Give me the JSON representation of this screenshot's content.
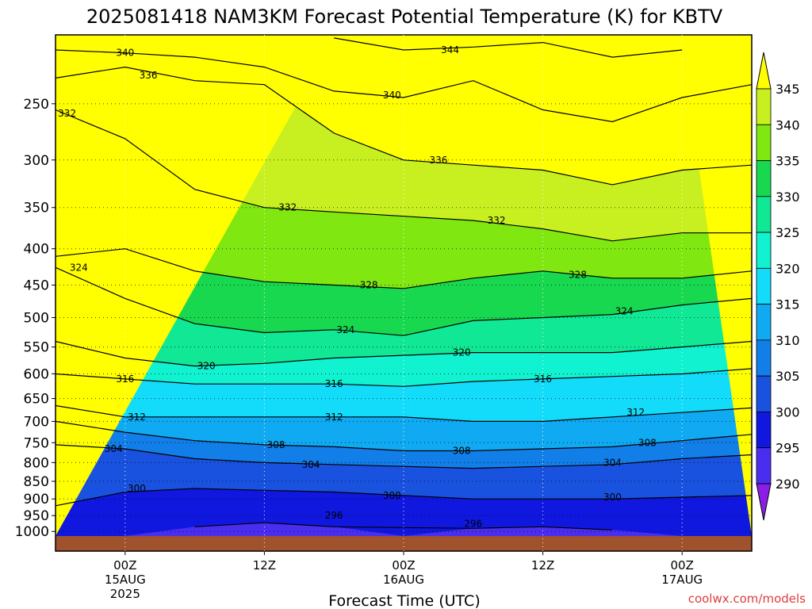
{
  "chart_data": {
    "type": "contour",
    "title": "2025081418 NAM3KM Forecast Potential Temperature (K) for KBTV",
    "xlabel": "Forecast Time (UTC)",
    "ylabel": "",
    "credit": "coolwx.com/models",
    "x_ticks": [
      {
        "hour": 6,
        "lines": [
          "00Z",
          "15AUG",
          "2025"
        ]
      },
      {
        "hour": 18,
        "lines": [
          "12Z"
        ]
      },
      {
        "hour": 30,
        "lines": [
          "00Z",
          "16AUG"
        ]
      },
      {
        "hour": 42,
        "lines": [
          "12Z"
        ]
      },
      {
        "hour": 54,
        "lines": [
          "00Z",
          "17AUG"
        ]
      }
    ],
    "x_range_hours": [
      0,
      60
    ],
    "y_ticks": [
      250,
      300,
      350,
      400,
      450,
      500,
      550,
      600,
      650,
      700,
      750,
      800,
      850,
      900,
      950,
      1000
    ],
    "y_range_hpa": [
      200,
      1015
    ],
    "y_scale": "log-pressure",
    "grid": "dotted",
    "colorbar": {
      "levels": [
        290,
        295,
        300,
        305,
        310,
        315,
        320,
        325,
        330,
        335,
        340,
        345
      ],
      "colors": [
        "#8a1ee6",
        "#4a2ef0",
        "#1018e0",
        "#1a52e0",
        "#127ee8",
        "#10aaf2",
        "#12dcfa",
        "#10f2d0",
        "#10e896",
        "#18d850",
        "#80e810",
        "#c8f020",
        "#ffff00"
      ]
    },
    "isotherms": [
      {
        "value": 296,
        "label_hour": 18,
        "pressure": [
          [
            0,
            0
          ],
          [
            6,
            0
          ],
          [
            12,
            985
          ],
          [
            18,
            972
          ],
          [
            24,
            985
          ],
          [
            30,
            0
          ],
          [
            36,
            990
          ],
          [
            42,
            985
          ],
          [
            48,
            995
          ],
          [
            54,
            0
          ],
          [
            60,
            0
          ]
        ],
        "label_at": [
          [
            24,
            950
          ],
          [
            36,
            975
          ]
        ]
      },
      {
        "value": 300,
        "pressure": [
          [
            0,
            920
          ],
          [
            6,
            880
          ],
          [
            12,
            870
          ],
          [
            18,
            875
          ],
          [
            24,
            880
          ],
          [
            30,
            890
          ],
          [
            36,
            900
          ],
          [
            42,
            900
          ],
          [
            48,
            900
          ],
          [
            54,
            895
          ],
          [
            60,
            890
          ]
        ],
        "label_at": [
          [
            7,
            870
          ],
          [
            29,
            890
          ],
          [
            48,
            895
          ]
        ]
      },
      {
        "value": 304,
        "pressure": [
          [
            0,
            755
          ],
          [
            6,
            765
          ],
          [
            12,
            790
          ],
          [
            18,
            800
          ],
          [
            24,
            805
          ],
          [
            30,
            810
          ],
          [
            36,
            815
          ],
          [
            42,
            810
          ],
          [
            48,
            805
          ],
          [
            54,
            790
          ],
          [
            60,
            780
          ]
        ],
        "label_at": [
          [
            5,
            765
          ],
          [
            22,
            805
          ],
          [
            48,
            800
          ]
        ]
      },
      {
        "value": 308,
        "pressure": [
          [
            0,
            700
          ],
          [
            6,
            725
          ],
          [
            12,
            745
          ],
          [
            18,
            755
          ],
          [
            24,
            760
          ],
          [
            30,
            770
          ],
          [
            36,
            770
          ],
          [
            42,
            765
          ],
          [
            48,
            760
          ],
          [
            54,
            745
          ],
          [
            60,
            730
          ]
        ],
        "label_at": [
          [
            19,
            755
          ],
          [
            35,
            770
          ],
          [
            51,
            750
          ]
        ]
      },
      {
        "value": 312,
        "pressure": [
          [
            0,
            665
          ],
          [
            6,
            690
          ],
          [
            12,
            690
          ],
          [
            18,
            690
          ],
          [
            24,
            690
          ],
          [
            30,
            690
          ],
          [
            36,
            700
          ],
          [
            42,
            700
          ],
          [
            48,
            690
          ],
          [
            54,
            680
          ],
          [
            60,
            670
          ]
        ],
        "label_at": [
          [
            7,
            690
          ],
          [
            24,
            690
          ],
          [
            50,
            680
          ]
        ]
      },
      {
        "value": 316,
        "pressure": [
          [
            0,
            600
          ],
          [
            6,
            610
          ],
          [
            12,
            620
          ],
          [
            18,
            620
          ],
          [
            24,
            620
          ],
          [
            30,
            625
          ],
          [
            36,
            615
          ],
          [
            42,
            610
          ],
          [
            48,
            605
          ],
          [
            54,
            600
          ],
          [
            60,
            590
          ]
        ],
        "label_at": [
          [
            6,
            610
          ],
          [
            24,
            620
          ],
          [
            42,
            610
          ]
        ]
      },
      {
        "value": 320,
        "pressure": [
          [
            0,
            540
          ],
          [
            6,
            570
          ],
          [
            12,
            585
          ],
          [
            18,
            580
          ],
          [
            24,
            570
          ],
          [
            30,
            565
          ],
          [
            36,
            560
          ],
          [
            42,
            560
          ],
          [
            48,
            560
          ],
          [
            54,
            550
          ],
          [
            60,
            540
          ]
        ],
        "label_at": [
          [
            13,
            585
          ],
          [
            35,
            560
          ]
        ]
      },
      {
        "value": 324,
        "pressure": [
          [
            0,
            425
          ],
          [
            6,
            470
          ],
          [
            12,
            510
          ],
          [
            18,
            525
          ],
          [
            24,
            520
          ],
          [
            30,
            530
          ],
          [
            36,
            505
          ],
          [
            42,
            500
          ],
          [
            48,
            495
          ],
          [
            54,
            480
          ],
          [
            60,
            470
          ]
        ],
        "label_at": [
          [
            2,
            425
          ],
          [
            25,
            520
          ],
          [
            49,
            490
          ]
        ]
      },
      {
        "value": 328,
        "pressure": [
          [
            0,
            410
          ],
          [
            6,
            400
          ],
          [
            12,
            430
          ],
          [
            18,
            445
          ],
          [
            24,
            450
          ],
          [
            30,
            455
          ],
          [
            36,
            440
          ],
          [
            42,
            430
          ],
          [
            48,
            440
          ],
          [
            54,
            440
          ],
          [
            60,
            430
          ]
        ],
        "label_at": [
          [
            27,
            450
          ],
          [
            45,
            435
          ]
        ]
      },
      {
        "value": 332,
        "pressure": [
          [
            0,
            255
          ],
          [
            6,
            280
          ],
          [
            12,
            330
          ],
          [
            18,
            350
          ],
          [
            24,
            355
          ],
          [
            30,
            360
          ],
          [
            36,
            365
          ],
          [
            42,
            375
          ],
          [
            48,
            390
          ],
          [
            54,
            380
          ],
          [
            60,
            380
          ]
        ],
        "label_at": [
          [
            1,
            258
          ],
          [
            20,
            350
          ],
          [
            38,
            365
          ]
        ]
      },
      {
        "value": 336,
        "pressure": [
          [
            0,
            230
          ],
          [
            6,
            222
          ],
          [
            12,
            232
          ],
          [
            18,
            235
          ],
          [
            24,
            275
          ],
          [
            30,
            300
          ],
          [
            36,
            305
          ],
          [
            42,
            310
          ],
          [
            48,
            325
          ],
          [
            54,
            310
          ],
          [
            60,
            305
          ]
        ],
        "label_at": [
          [
            8,
            228
          ],
          [
            33,
            300
          ]
        ]
      },
      {
        "value": 340,
        "pressure": [
          [
            0,
            210
          ],
          [
            6,
            212
          ],
          [
            12,
            215
          ],
          [
            18,
            222
          ],
          [
            24,
            240
          ],
          [
            30,
            245
          ],
          [
            36,
            232
          ],
          [
            42,
            255
          ],
          [
            48,
            265
          ],
          [
            54,
            245
          ],
          [
            60,
            235
          ]
        ],
        "label_at": [
          [
            6,
            212
          ],
          [
            29,
            243
          ]
        ]
      },
      {
        "value": 344,
        "pressure": [
          [
            0,
            0
          ],
          [
            24,
            202
          ],
          [
            30,
            210
          ],
          [
            36,
            208
          ],
          [
            42,
            205
          ],
          [
            48,
            215
          ],
          [
            54,
            210
          ],
          [
            60,
            0
          ]
        ],
        "label_at": [
          [
            34,
            210
          ]
        ]
      }
    ],
    "surface_band_color": "#a0522d"
  }
}
